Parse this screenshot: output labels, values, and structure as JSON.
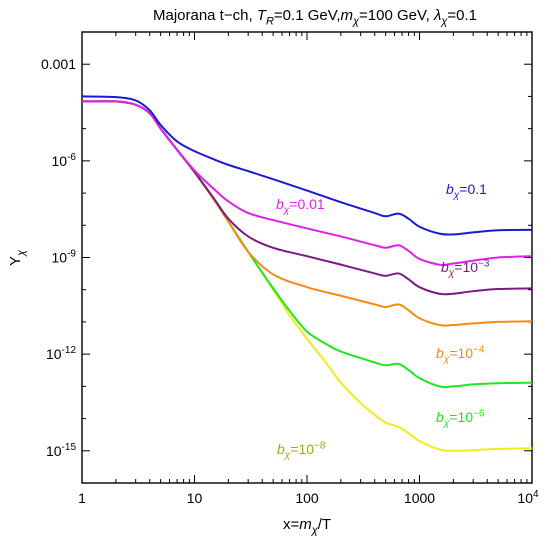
{
  "chart_data": {
    "type": "line",
    "title": "Majorana t−ch, T_R=0.1 GeV,m_χ=100 GeV, λ_χ=0.1",
    "title_parts": [
      {
        "text": "Majorana t−ch, "
      },
      {
        "text": "T",
        "italic": true
      },
      {
        "text": "R",
        "sub": true,
        "italic": true
      },
      {
        "text": "=0.1 GeV,"
      },
      {
        "text": "m",
        "italic": true
      },
      {
        "text": "χ",
        "sub": true,
        "italic": true
      },
      {
        "text": "=100 GeV, "
      },
      {
        "text": "λ",
        "italic": true
      },
      {
        "text": "χ",
        "sub": true,
        "italic": true
      },
      {
        "text": "=0.1"
      }
    ],
    "xlabel": "x=m_χ/T",
    "xlabel_parts": [
      {
        "text": "x="
      },
      {
        "text": "m",
        "italic": true
      },
      {
        "text": "χ",
        "sub": true,
        "italic": true
      },
      {
        "text": "/T"
      }
    ],
    "ylabel": "Y_χ",
    "ylabel_parts": [
      {
        "text": "Y"
      },
      {
        "text": "χ",
        "sub": true,
        "italic": true
      }
    ],
    "x_scale": "log",
    "y_scale": "log",
    "xlim": [
      1,
      10000
    ],
    "ylim": [
      1e-16,
      0.01
    ],
    "x_ticks": [
      {
        "value": 1,
        "label": "1"
      },
      {
        "value": 10,
        "label": "10"
      },
      {
        "value": 100,
        "label": "100"
      },
      {
        "value": 1000,
        "label": "1000"
      },
      {
        "value": 10000,
        "base": "10",
        "exp": "4"
      }
    ],
    "y_ticks": [
      {
        "value": 0.001,
        "label": "0.001"
      },
      {
        "value": 1e-06,
        "base": "10",
        "exp": "-6"
      },
      {
        "value": 1e-09,
        "base": "10",
        "exp": "-9"
      },
      {
        "value": 1e-12,
        "base": "10",
        "exp": "-12"
      },
      {
        "value": 1e-15,
        "base": "10",
        "exp": "-15"
      }
    ],
    "grid": false,
    "legend": "inline labels",
    "series": [
      {
        "name": "b_χ=0.1",
        "label_parts": [
          {
            "text": "b",
            "italic": true
          },
          {
            "text": "χ",
            "sub": true,
            "italic": true
          },
          {
            "text": "=0.1"
          }
        ],
        "color": "#1a1ad6",
        "x": [
          1,
          2,
          3,
          4,
          5,
          7,
          10,
          15,
          20,
          30,
          50,
          100,
          200,
          400,
          500,
          650,
          800,
          1000,
          1500,
          2000,
          3000,
          5000,
          10000
        ],
        "y": [
          0.0001,
          9.5e-05,
          7.5e-05,
          3.7e-05,
          1.3e-05,
          4e-06,
          2e-06,
          1.1e-06,
          7.5e-07,
          4.8e-07,
          2.7e-07,
          1.2e-07,
          5.2e-08,
          2.4e-08,
          1.9e-08,
          2.3e-08,
          1.6e-08,
          9e-09,
          5.5e-09,
          5.2e-09,
          6e-09,
          7e-09,
          7.2e-09
        ]
      },
      {
        "name": "b_χ=0.01",
        "label_parts": [
          {
            "text": "b",
            "italic": true
          },
          {
            "text": "χ",
            "sub": true,
            "italic": true
          },
          {
            "text": "=0.01"
          }
        ],
        "color": "#e020e8",
        "x": [
          1,
          2,
          3,
          4,
          5,
          7,
          10,
          15,
          20,
          30,
          50,
          100,
          200,
          400,
          500,
          650,
          800,
          1000,
          1500,
          2000,
          3000,
          5000,
          10000
        ],
        "y": [
          7e-05,
          7e-05,
          5.5e-05,
          3e-05,
          1e-05,
          2.2e-06,
          5e-07,
          1.3e-07,
          5.5e-08,
          2.4e-08,
          1.45e-08,
          8e-09,
          4.5e-09,
          2.4e-09,
          2e-09,
          2.4e-09,
          1.6e-09,
          9e-10,
          6e-10,
          6.5e-10,
          8e-10,
          1e-09,
          1.1e-09
        ]
      },
      {
        "name": "b_χ=10^-3",
        "label_parts": [
          {
            "text": "b",
            "italic": true
          },
          {
            "text": "χ",
            "sub": true,
            "italic": true
          },
          {
            "text": "=10"
          },
          {
            "text": "−3",
            "sup": true
          }
        ],
        "color": "#7d1a82",
        "x": [
          1,
          2,
          3,
          4,
          5,
          7,
          10,
          15,
          20,
          30,
          50,
          100,
          200,
          400,
          500,
          650,
          800,
          1000,
          1500,
          2000,
          3000,
          5000,
          10000
        ],
        "y": [
          7e-05,
          7e-05,
          5.5e-05,
          3e-05,
          1e-05,
          2.2e-06,
          4.5e-07,
          6.5e-08,
          1.6e-08,
          4.5e-09,
          2e-09,
          1.1e-09,
          6e-10,
          3.2e-10,
          2.7e-10,
          3.2e-10,
          2.1e-10,
          1.2e-10,
          7.5e-11,
          7.5e-11,
          9e-11,
          1.05e-10,
          1.1e-10
        ]
      },
      {
        "name": "b_χ=10^-4",
        "label_parts": [
          {
            "text": "b",
            "italic": true
          },
          {
            "text": "χ",
            "sub": true,
            "italic": true
          },
          {
            "text": "=10"
          },
          {
            "text": "−4",
            "sup": true
          }
        ],
        "color": "#f58a18",
        "x": [
          1,
          2,
          3,
          4,
          5,
          7,
          10,
          15,
          20,
          30,
          50,
          100,
          200,
          400,
          500,
          650,
          800,
          1000,
          1500,
          2000,
          3000,
          5000,
          10000
        ],
        "y": [
          7e-05,
          7e-05,
          5.5e-05,
          3e-05,
          1e-05,
          2.2e-06,
          4.5e-07,
          6e-08,
          1.3e-08,
          1.5e-09,
          3e-10,
          1.2e-10,
          6.5e-11,
          3.5e-11,
          2.9e-11,
          3.5e-11,
          2.3e-11,
          1.3e-11,
          8e-12,
          8e-12,
          9e-12,
          1e-11,
          1.05e-11
        ]
      },
      {
        "name": "b_χ=10^-6",
        "label_parts": [
          {
            "text": "b",
            "italic": true
          },
          {
            "text": "χ",
            "sub": true,
            "italic": true
          },
          {
            "text": "=10"
          },
          {
            "text": "−6",
            "sup": true
          }
        ],
        "color": "#1ee81e",
        "x": [
          1,
          2,
          3,
          4,
          5,
          7,
          10,
          15,
          20,
          30,
          50,
          70,
          100,
          150,
          200,
          400,
          500,
          650,
          800,
          1000,
          1500,
          2000,
          3000,
          5000,
          10000
        ],
        "y": [
          7e-05,
          7e-05,
          5.5e-05,
          3e-05,
          1e-05,
          2.2e-06,
          4.5e-07,
          6e-08,
          1.3e-08,
          1.5e-09,
          1.1e-10,
          2.2e-11,
          5e-12,
          2e-12,
          1.2e-12,
          5.5e-13,
          4.5e-13,
          5e-13,
          3.2e-13,
          1.8e-13,
          1e-13,
          1e-13,
          1.15e-13,
          1.25e-13,
          1.3e-13
        ]
      },
      {
        "name": "b_χ=10^-8",
        "label_parts": [
          {
            "text": "b",
            "italic": true
          },
          {
            "text": "χ",
            "sub": true,
            "italic": true
          },
          {
            "text": "=10"
          },
          {
            "text": "−8",
            "sup": true
          }
        ],
        "color": "#f2ec18",
        "label_color": "#a8a21a",
        "x": [
          1,
          2,
          3,
          4,
          5,
          7,
          10,
          15,
          20,
          30,
          50,
          70,
          100,
          150,
          200,
          300,
          400,
          500,
          650,
          800,
          1000,
          1500,
          2000,
          3000,
          5000,
          10000
        ],
        "y": [
          7e-05,
          7e-05,
          5.5e-05,
          3e-05,
          1e-05,
          2.2e-06,
          4.5e-07,
          6e-08,
          1.3e-08,
          1.5e-09,
          1e-10,
          1.6e-11,
          3e-12,
          5e-13,
          1.3e-13,
          3e-14,
          1.3e-14,
          7.5e-15,
          5.5e-15,
          3.5e-15,
          2e-15,
          1.1e-15,
          1e-15,
          1.05e-15,
          1.15e-15,
          1.2e-15
        ]
      }
    ]
  }
}
